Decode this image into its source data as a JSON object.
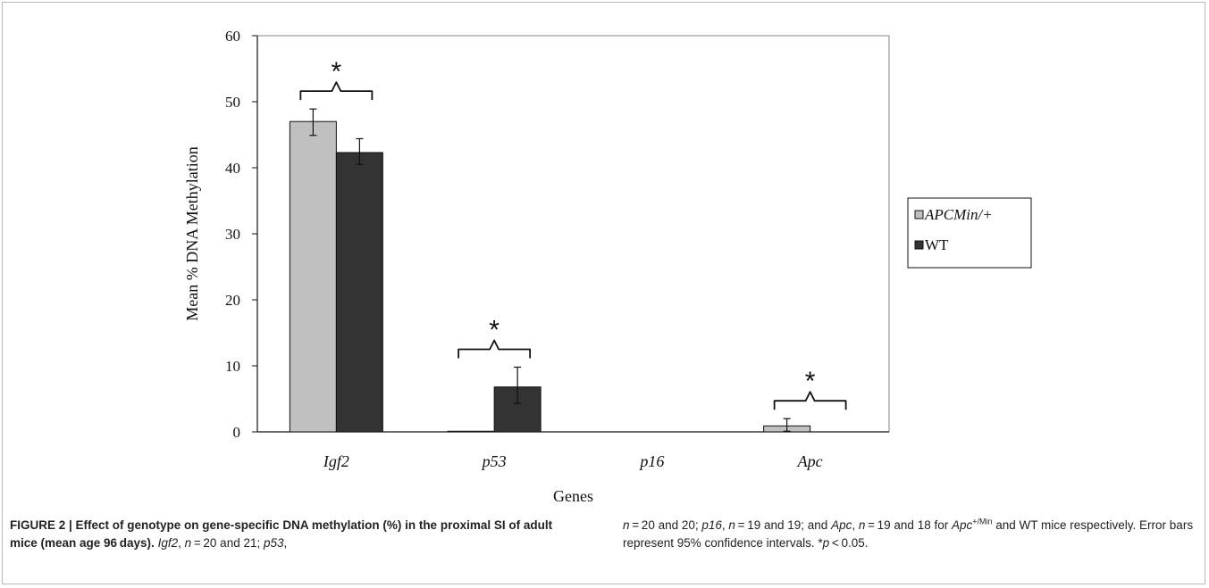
{
  "chart_data": {
    "type": "bar",
    "title": "",
    "xlabel": "Genes",
    "ylabel": "Mean % DNA Methylation",
    "ylim": [
      0,
      60
    ],
    "yticks": [
      "0",
      "10",
      "20",
      "30",
      "40",
      "50",
      "60"
    ],
    "categories": [
      "Igf2",
      "p53",
      "p16",
      "Apc"
    ],
    "series": [
      {
        "name": "APCMin/+",
        "color": "#c0c0c0",
        "values": [
          47,
          0.1,
          0,
          0.9
        ],
        "err_low": [
          44.9,
          0.1,
          0,
          0.1
        ],
        "err_high": [
          48.9,
          0.1,
          0,
          2.0
        ]
      },
      {
        "name": "WT",
        "color": "#333333",
        "values": [
          42.3,
          6.8,
          0,
          0
        ],
        "err_low": [
          40.5,
          4.3,
          0,
          0
        ],
        "err_high": [
          44.4,
          9.8,
          0,
          0
        ]
      }
    ],
    "significance": [
      {
        "category": "Igf2",
        "label": "*"
      },
      {
        "category": "p53",
        "label": "*"
      },
      {
        "category": "Apc",
        "label": "*"
      }
    ],
    "legend_position": "right",
    "grid": false
  },
  "caption": {
    "bold": "FIGURE 2 | Effect of genotype on gene-specific DNA methylation (%) in the proximal SI of adult mice (mean age 96 days).",
    "igf2": "Igf2",
    "t1": ", ",
    "n1": "n",
    "t2": " = 20 and 21; ",
    "p53": "p53",
    "t3": ", ",
    "n2": "n",
    "t4": " = 20 and 20; ",
    "p16": "p16",
    "t5": ", ",
    "n3": "n",
    "t6": " = 19 and 19; and ",
    "apc": "Apc",
    "t7": ", ",
    "n4": "n",
    "t8": " = 19 and 18 for ",
    "apc2": "Apc",
    "sup": "+/Min",
    "t9": " and WT mice respectively. Error bars represent 95% confidence intervals. *",
    "pv": "p",
    "t10": " < 0.05."
  }
}
